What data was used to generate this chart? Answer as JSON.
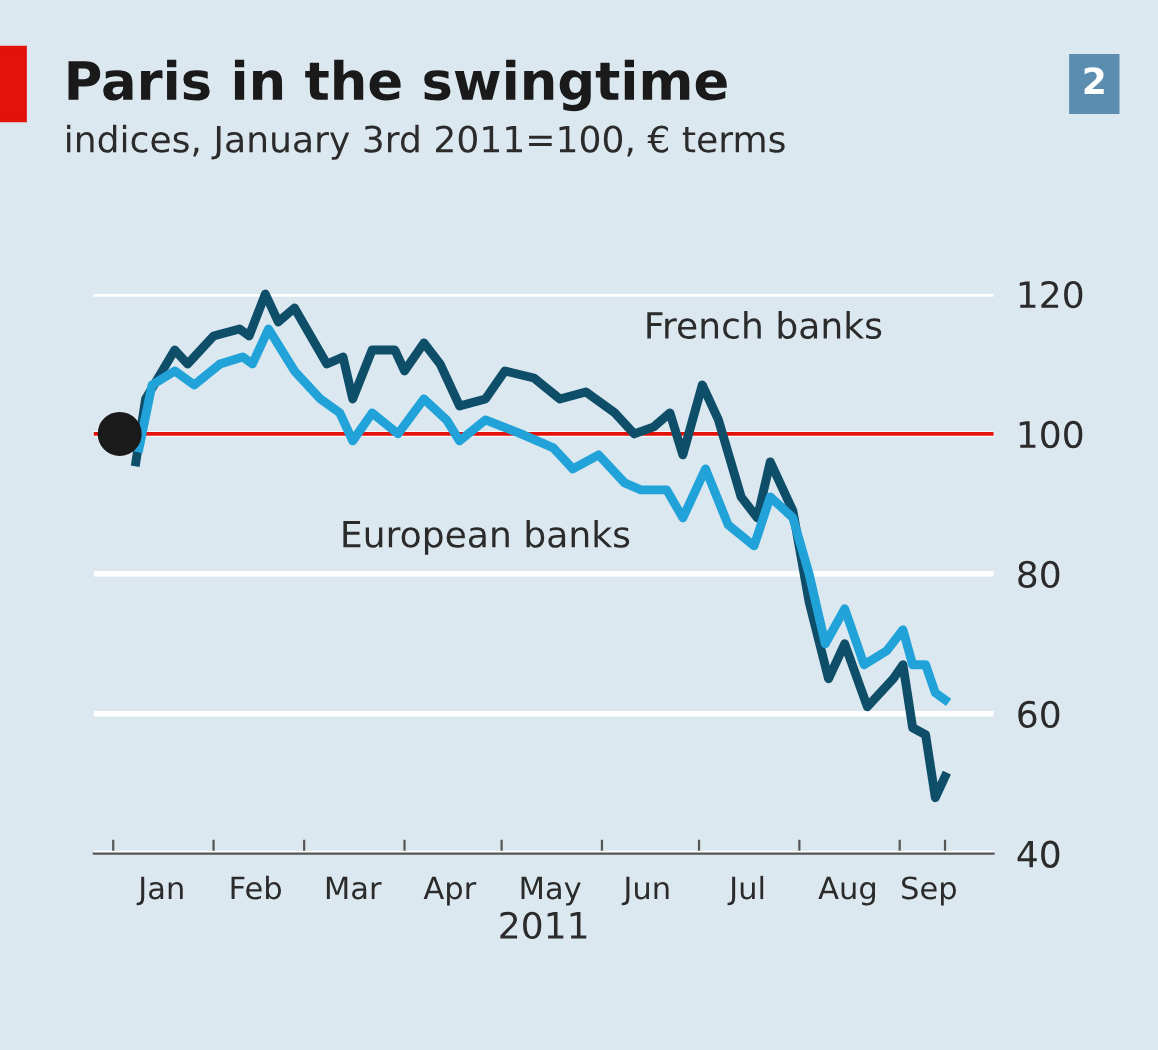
{
  "chart_data": {
    "type": "line",
    "title": "Paris in the swingtime",
    "subtitle": "indices, January 3rd 2011=100, € terms",
    "xlabel": "2011",
    "annotations": [
      "2"
    ],
    "xlim": [
      "2010-12-26",
      "2011-09-30"
    ],
    "xticks": [
      {
        "value": "2011-01-01",
        "label": null
      },
      {
        "value": "2011-01-16",
        "label": "Jan"
      },
      {
        "value": "2011-02-01",
        "label": null
      },
      {
        "value": "2011-02-14",
        "label": "Feb"
      },
      {
        "value": "2011-03-01",
        "label": null
      },
      {
        "value": "2011-03-16",
        "label": "Mar"
      },
      {
        "value": "2011-04-01",
        "label": null
      },
      {
        "value": "2011-04-15",
        "label": "Apr"
      },
      {
        "value": "2011-05-01",
        "label": null
      },
      {
        "value": "2011-05-16",
        "label": "May"
      },
      {
        "value": "2011-06-01",
        "label": null
      },
      {
        "value": "2011-06-15",
        "label": "Jun"
      },
      {
        "value": "2011-07-01",
        "label": null
      },
      {
        "value": "2011-07-16",
        "label": "Jul"
      },
      {
        "value": "2011-08-01",
        "label": null
      },
      {
        "value": "2011-08-16",
        "label": "Aug"
      },
      {
        "value": "2011-09-01",
        "label": null
      },
      {
        "value": "2011-09-10",
        "label": "Sep"
      },
      {
        "value": "2011-09-15",
        "label": null
      }
    ],
    "ylim": [
      40,
      120
    ],
    "yticks": [
      40,
      60,
      80,
      100,
      120
    ],
    "grid": "y",
    "legend": false,
    "ref_lines": [
      {
        "axis": "y",
        "value": 100,
        "color": "#e3120b"
      }
    ],
    "series": [
      {
        "name": "French banks",
        "color": "#0f4e68",
        "x": [
          "2011-01-08",
          "2011-01-11",
          "2011-01-20",
          "2011-01-24",
          "2011-02-01",
          "2011-02-09",
          "2011-02-12",
          "2011-02-17",
          "2011-02-21",
          "2011-02-26",
          "2011-03-03",
          "2011-03-08",
          "2011-03-13",
          "2011-03-16",
          "2011-03-22",
          "2011-03-29",
          "2011-04-01",
          "2011-04-07",
          "2011-04-12",
          "2011-04-18",
          "2011-04-26",
          "2011-05-02",
          "2011-05-11",
          "2011-05-19",
          "2011-05-27",
          "2011-06-05",
          "2011-06-11",
          "2011-06-17",
          "2011-06-22",
          "2011-06-26",
          "2011-07-02",
          "2011-07-07",
          "2011-07-14",
          "2011-07-19",
          "2011-07-23",
          "2011-07-30",
          "2011-08-04",
          "2011-08-10",
          "2011-08-15",
          "2011-08-22",
          "2011-08-30",
          "2011-09-02",
          "2011-09-05",
          "2011-09-09",
          "2011-09-12",
          "2011-09-15"
        ],
        "values": [
          96,
          105,
          112,
          110,
          114,
          115,
          114,
          120,
          116,
          118,
          114,
          110,
          111,
          105,
          112,
          112,
          109,
          113,
          110,
          104,
          105,
          109,
          108,
          105,
          106,
          103,
          100,
          101,
          103,
          97,
          107,
          102,
          91,
          88,
          96,
          89,
          76,
          65,
          70,
          61,
          65,
          67,
          58,
          57,
          48,
          51
        ]
      },
      {
        "name": "European banks",
        "color": "#21a3d9",
        "x": [
          "2011-01-09",
          "2011-01-13",
          "2011-01-20",
          "2011-01-26",
          "2011-02-03",
          "2011-02-10",
          "2011-02-13",
          "2011-02-18",
          "2011-02-26",
          "2011-03-06",
          "2011-03-12",
          "2011-03-16",
          "2011-03-22",
          "2011-03-30",
          "2011-04-07",
          "2011-04-14",
          "2011-04-18",
          "2011-04-26",
          "2011-05-07",
          "2011-05-17",
          "2011-05-23",
          "2011-05-31",
          "2011-06-08",
          "2011-06-13",
          "2011-06-21",
          "2011-06-26",
          "2011-07-03",
          "2011-07-10",
          "2011-07-18",
          "2011-07-23",
          "2011-07-30",
          "2011-08-04",
          "2011-08-09",
          "2011-08-15",
          "2011-08-21",
          "2011-08-28",
          "2011-09-02",
          "2011-09-05",
          "2011-09-09",
          "2011-09-12",
          "2011-09-15"
        ],
        "values": [
          98,
          107,
          109,
          107,
          110,
          111,
          110,
          115,
          109,
          105,
          103,
          99,
          103,
          100,
          105,
          102,
          99,
          102,
          100,
          98,
          95,
          97,
          93,
          92,
          92,
          88,
          95,
          87,
          84,
          91,
          88,
          80,
          70,
          75,
          67,
          69,
          72,
          67,
          67,
          63,
          62
        ]
      },
      {
        "type": "scatter",
        "color": "#1a1a1a",
        "marker": "circle",
        "x": [
          "2011-01-03"
        ],
        "values": [
          100
        ]
      }
    ]
  }
}
